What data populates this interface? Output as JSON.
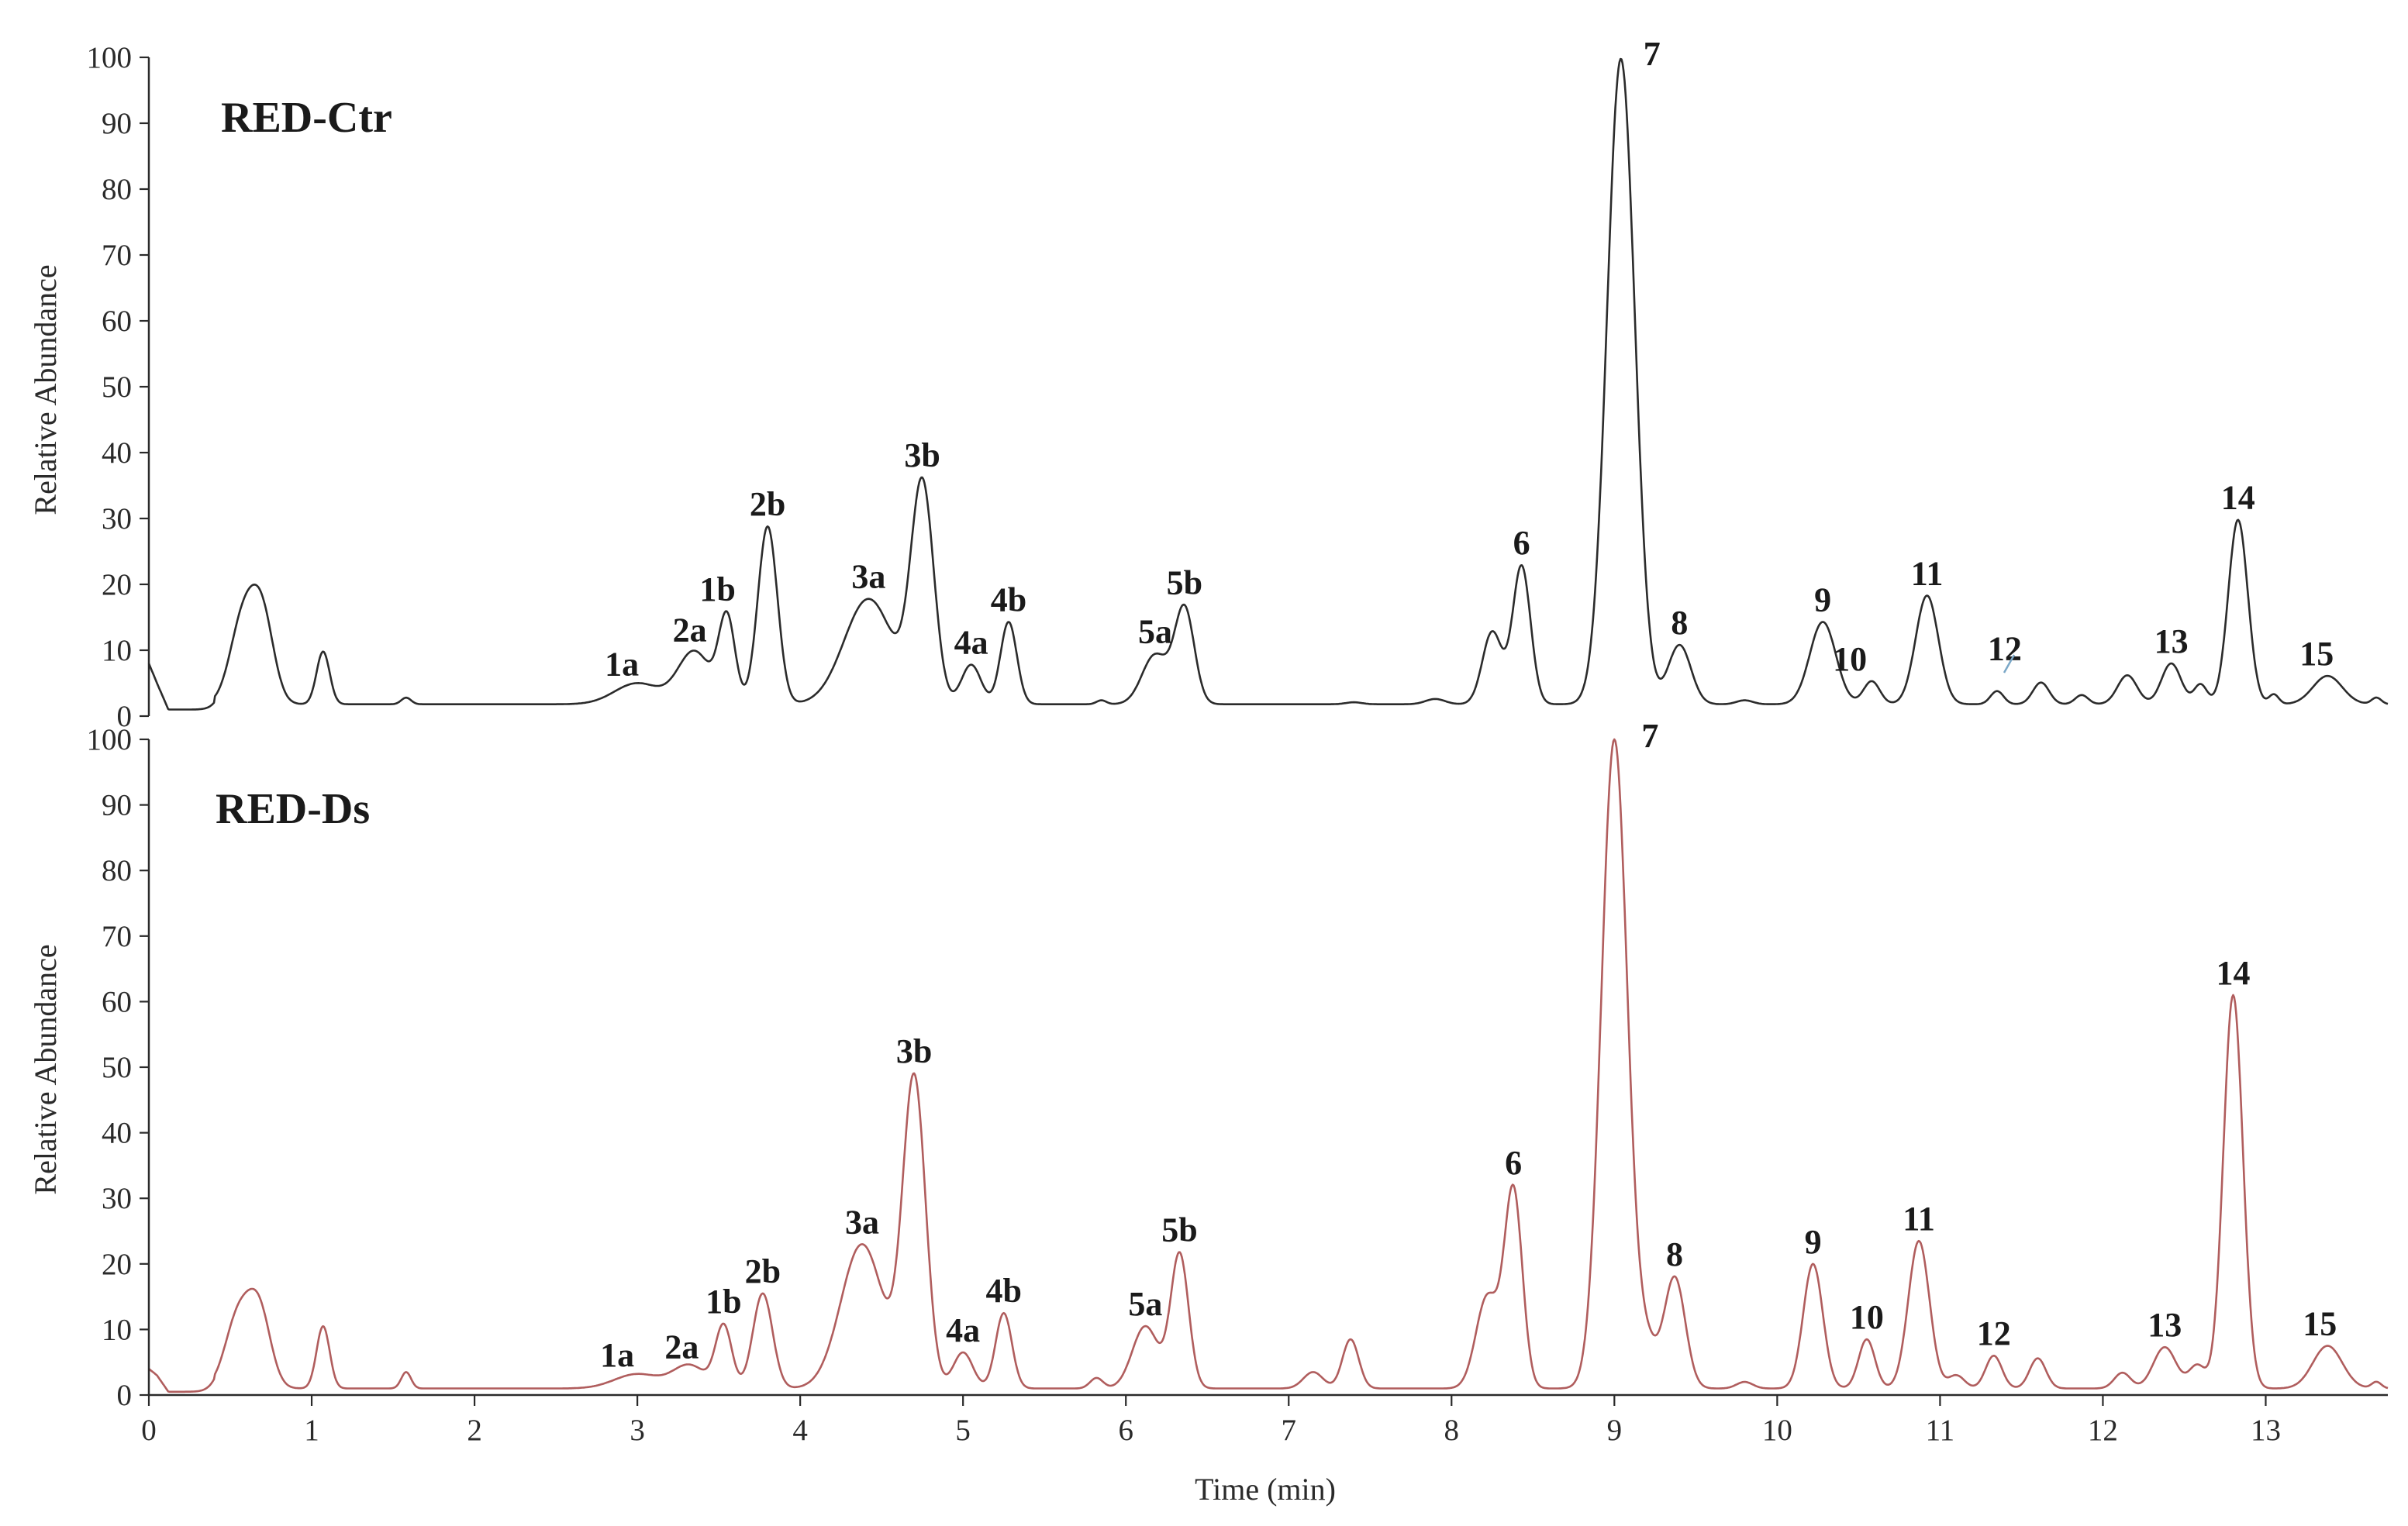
{
  "chart_data": [
    {
      "type": "line",
      "title": "RED-Ctr",
      "ylabel": "Relative Abundance",
      "xlabel": "",
      "xlim": [
        0,
        13.75
      ],
      "ylim": [
        0,
        100
      ],
      "yticks": [
        "0",
        "10",
        "20",
        "30",
        "40",
        "50",
        "60",
        "70",
        "80",
        "90",
        "100"
      ],
      "color": "#2b2b2b",
      "baseline": 1.8,
      "start": [
        [
          0,
          8
        ],
        [
          0.05,
          5
        ],
        [
          0.12,
          1
        ],
        [
          0.4,
          1
        ]
      ],
      "peaks": [
        {
          "label": "",
          "rt": 0.58,
          "height": 13,
          "width": 0.08
        },
        {
          "label": "",
          "rt": 0.7,
          "height": 12,
          "width": 0.07
        },
        {
          "label": "",
          "rt": 1.07,
          "height": 8,
          "width": 0.04
        },
        {
          "label": "",
          "rt": 1.58,
          "height": 1,
          "width": 0.03
        },
        {
          "label": "1a",
          "rt": 3.0,
          "height": 3.2,
          "width": 0.14
        },
        {
          "label": "2a",
          "rt": 3.35,
          "height": 8,
          "width": 0.1
        },
        {
          "label": "1b",
          "rt": 3.55,
          "height": 13,
          "width": 0.05
        },
        {
          "label": "2b",
          "rt": 3.8,
          "height": 27,
          "width": 0.06
        },
        {
          "label": "3a",
          "rt": 4.42,
          "height": 16,
          "width": 0.15
        },
        {
          "label": "3b",
          "rt": 4.75,
          "height": 33,
          "width": 0.07
        },
        {
          "label": "4a",
          "rt": 5.05,
          "height": 6,
          "width": 0.06
        },
        {
          "label": "4b",
          "rt": 5.28,
          "height": 12.5,
          "width": 0.05
        },
        {
          "label": "",
          "rt": 5.85,
          "height": 0.6,
          "width": 0.03
        },
        {
          "label": "5a",
          "rt": 6.18,
          "height": 7.5,
          "width": 0.08
        },
        {
          "label": "5b",
          "rt": 6.36,
          "height": 14.5,
          "width": 0.06
        },
        {
          "label": "",
          "rt": 7.4,
          "height": 0.3,
          "width": 0.05
        },
        {
          "label": "",
          "rt": 7.9,
          "height": 0.8,
          "width": 0.06
        },
        {
          "label": "",
          "rt": 8.25,
          "height": 11,
          "width": 0.06
        },
        {
          "label": "6",
          "rt": 8.43,
          "height": 21,
          "width": 0.055
        },
        {
          "label": "7",
          "rt": 9.04,
          "height": 98,
          "width": 0.085
        },
        {
          "label": "8",
          "rt": 9.4,
          "height": 9,
          "width": 0.07
        },
        {
          "label": "",
          "rt": 9.8,
          "height": 0.6,
          "width": 0.05
        },
        {
          "label": "9",
          "rt": 10.28,
          "height": 12.5,
          "width": 0.08
        },
        {
          "label": "10",
          "rt": 10.58,
          "height": 3.5,
          "width": 0.05
        },
        {
          "label": "11",
          "rt": 10.92,
          "height": 16.5,
          "width": 0.07
        },
        {
          "label": "12",
          "rt": 11.35,
          "height": 2,
          "width": 0.04
        },
        {
          "label": "",
          "rt": 11.62,
          "height": 3.3,
          "width": 0.05
        },
        {
          "label": "",
          "rt": 11.87,
          "height": 1.4,
          "width": 0.04
        },
        {
          "label": "",
          "rt": 12.15,
          "height": 4.4,
          "width": 0.06
        },
        {
          "label": "13",
          "rt": 12.42,
          "height": 6.2,
          "width": 0.06
        },
        {
          "label": "",
          "rt": 12.6,
          "height": 3,
          "width": 0.04
        },
        {
          "label": "14",
          "rt": 12.83,
          "height": 28,
          "width": 0.06
        },
        {
          "label": "",
          "rt": 13.05,
          "height": 1.5,
          "width": 0.03
        },
        {
          "label": "15",
          "rt": 13.38,
          "height": 4.3,
          "width": 0.09
        },
        {
          "label": "",
          "rt": 13.68,
          "height": 1,
          "width": 0.03
        }
      ]
    },
    {
      "type": "line",
      "title": "RED-Ds",
      "ylabel": "Relative Abundance",
      "xlabel": "Time (min)",
      "xlim": [
        0,
        13.75
      ],
      "ylim": [
        0,
        100
      ],
      "xticks": [
        "0",
        "1",
        "2",
        "3",
        "4",
        "5",
        "6",
        "7",
        "8",
        "9",
        "10",
        "11",
        "12",
        "13"
      ],
      "yticks": [
        "0",
        "10",
        "20",
        "30",
        "40",
        "50",
        "60",
        "70",
        "80",
        "90",
        "100"
      ],
      "color": "#b05d5d",
      "baseline": 1.0,
      "start": [
        [
          0,
          4
        ],
        [
          0.05,
          3
        ],
        [
          0.12,
          0.5
        ],
        [
          0.4,
          0.5
        ]
      ],
      "peaks": [
        {
          "label": "",
          "rt": 0.55,
          "height": 11,
          "width": 0.08
        },
        {
          "label": "",
          "rt": 0.68,
          "height": 11,
          "width": 0.07
        },
        {
          "label": "",
          "rt": 1.07,
          "height": 9.5,
          "width": 0.04
        },
        {
          "label": "",
          "rt": 1.58,
          "height": 2.5,
          "width": 0.03
        },
        {
          "label": "1a",
          "rt": 3.0,
          "height": 2.2,
          "width": 0.14
        },
        {
          "label": "2a",
          "rt": 3.32,
          "height": 3.5,
          "width": 0.1
        },
        {
          "label": "1b",
          "rt": 3.53,
          "height": 9.5,
          "width": 0.05
        },
        {
          "label": "2b",
          "rt": 3.77,
          "height": 14.5,
          "width": 0.06
        },
        {
          "label": "3a",
          "rt": 4.38,
          "height": 22,
          "width": 0.13
        },
        {
          "label": "3b",
          "rt": 4.7,
          "height": 47,
          "width": 0.07
        },
        {
          "label": "4a",
          "rt": 5.0,
          "height": 5.5,
          "width": 0.06
        },
        {
          "label": "4b",
          "rt": 5.25,
          "height": 11.5,
          "width": 0.05
        },
        {
          "label": "",
          "rt": 5.82,
          "height": 1.6,
          "width": 0.04
        },
        {
          "label": "5a",
          "rt": 6.12,
          "height": 9.5,
          "width": 0.08
        },
        {
          "label": "5b",
          "rt": 6.33,
          "height": 20.5,
          "width": 0.055
        },
        {
          "label": "",
          "rt": 7.15,
          "height": 2.5,
          "width": 0.06
        },
        {
          "label": "",
          "rt": 7.38,
          "height": 7.5,
          "width": 0.05
        },
        {
          "label": "",
          "rt": 8.22,
          "height": 14,
          "width": 0.07
        },
        {
          "label": "6",
          "rt": 8.38,
          "height": 30,
          "width": 0.055
        },
        {
          "label": "7",
          "rt": 9.0,
          "height": 99,
          "width": 0.08
        },
        {
          "label": "",
          "rt": 9.2,
          "height": 6,
          "width": 0.06
        },
        {
          "label": "8",
          "rt": 9.37,
          "height": 17,
          "width": 0.065
        },
        {
          "label": "",
          "rt": 9.8,
          "height": 1,
          "width": 0.05
        },
        {
          "label": "9",
          "rt": 10.22,
          "height": 19,
          "width": 0.06
        },
        {
          "label": "10",
          "rt": 10.55,
          "height": 7.5,
          "width": 0.05
        },
        {
          "label": "11",
          "rt": 10.87,
          "height": 22.5,
          "width": 0.065
        },
        {
          "label": "",
          "rt": 11.1,
          "height": 2,
          "width": 0.05
        },
        {
          "label": "12",
          "rt": 11.33,
          "height": 5,
          "width": 0.05
        },
        {
          "label": "",
          "rt": 11.6,
          "height": 4.6,
          "width": 0.05
        },
        {
          "label": "",
          "rt": 12.12,
          "height": 2.4,
          "width": 0.05
        },
        {
          "label": "13",
          "rt": 12.38,
          "height": 6.3,
          "width": 0.07
        },
        {
          "label": "",
          "rt": 12.58,
          "height": 3.5,
          "width": 0.05
        },
        {
          "label": "14",
          "rt": 12.8,
          "height": 60,
          "width": 0.06
        },
        {
          "label": "15",
          "rt": 13.38,
          "height": 6.5,
          "width": 0.09
        },
        {
          "label": "",
          "rt": 13.68,
          "height": 1,
          "width": 0.03
        }
      ]
    }
  ]
}
